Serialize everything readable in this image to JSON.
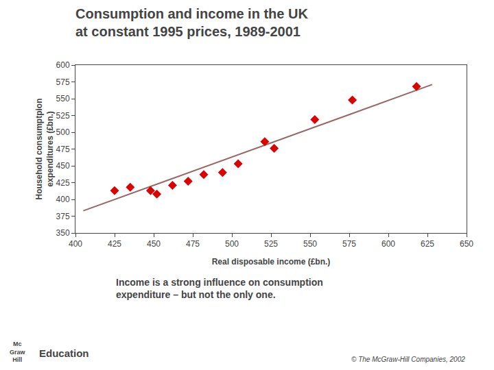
{
  "chart_data": {
    "type": "scatter",
    "title": "Consumption and income in the UK\nat constant 1995 prices, 1989-2001",
    "subtitle": "Income is a strong influence on consumption\nexpenditure – but not the only one.",
    "x_label": "Real disposable income (£bn.)",
    "y_label": "Household consumptpion\nexpenditures (£bn.)",
    "annotations": [
      "© The McGraw-Hill Companies, 2002",
      "Mc",
      "Graw",
      "Hill",
      "Education"
    ],
    "series": [
      {
        "type": "scatter",
        "color": "#dd0000",
        "marker": "diamond",
        "x": [
          425,
          435,
          448,
          452,
          462,
          472,
          482,
          494,
          504,
          521,
          527,
          553,
          577,
          618
        ],
        "values": [
          413,
          418,
          413,
          408,
          421,
          427,
          437,
          440,
          453,
          486,
          476,
          519,
          548,
          568
        ]
      },
      {
        "type": "line",
        "color": "#996666",
        "line_style": "solid",
        "x": [
          405,
          628
        ],
        "values": [
          383,
          571
        ]
      }
    ],
    "xlim": [
      400,
      650
    ],
    "ylim": [
      350,
      600
    ],
    "xticks": [
      400,
      425,
      450,
      475,
      500,
      525,
      550,
      575,
      600,
      625,
      650
    ],
    "yticks": [
      350,
      375,
      400,
      425,
      450,
      475,
      500,
      525,
      550,
      575,
      600
    ],
    "grid": false
  }
}
